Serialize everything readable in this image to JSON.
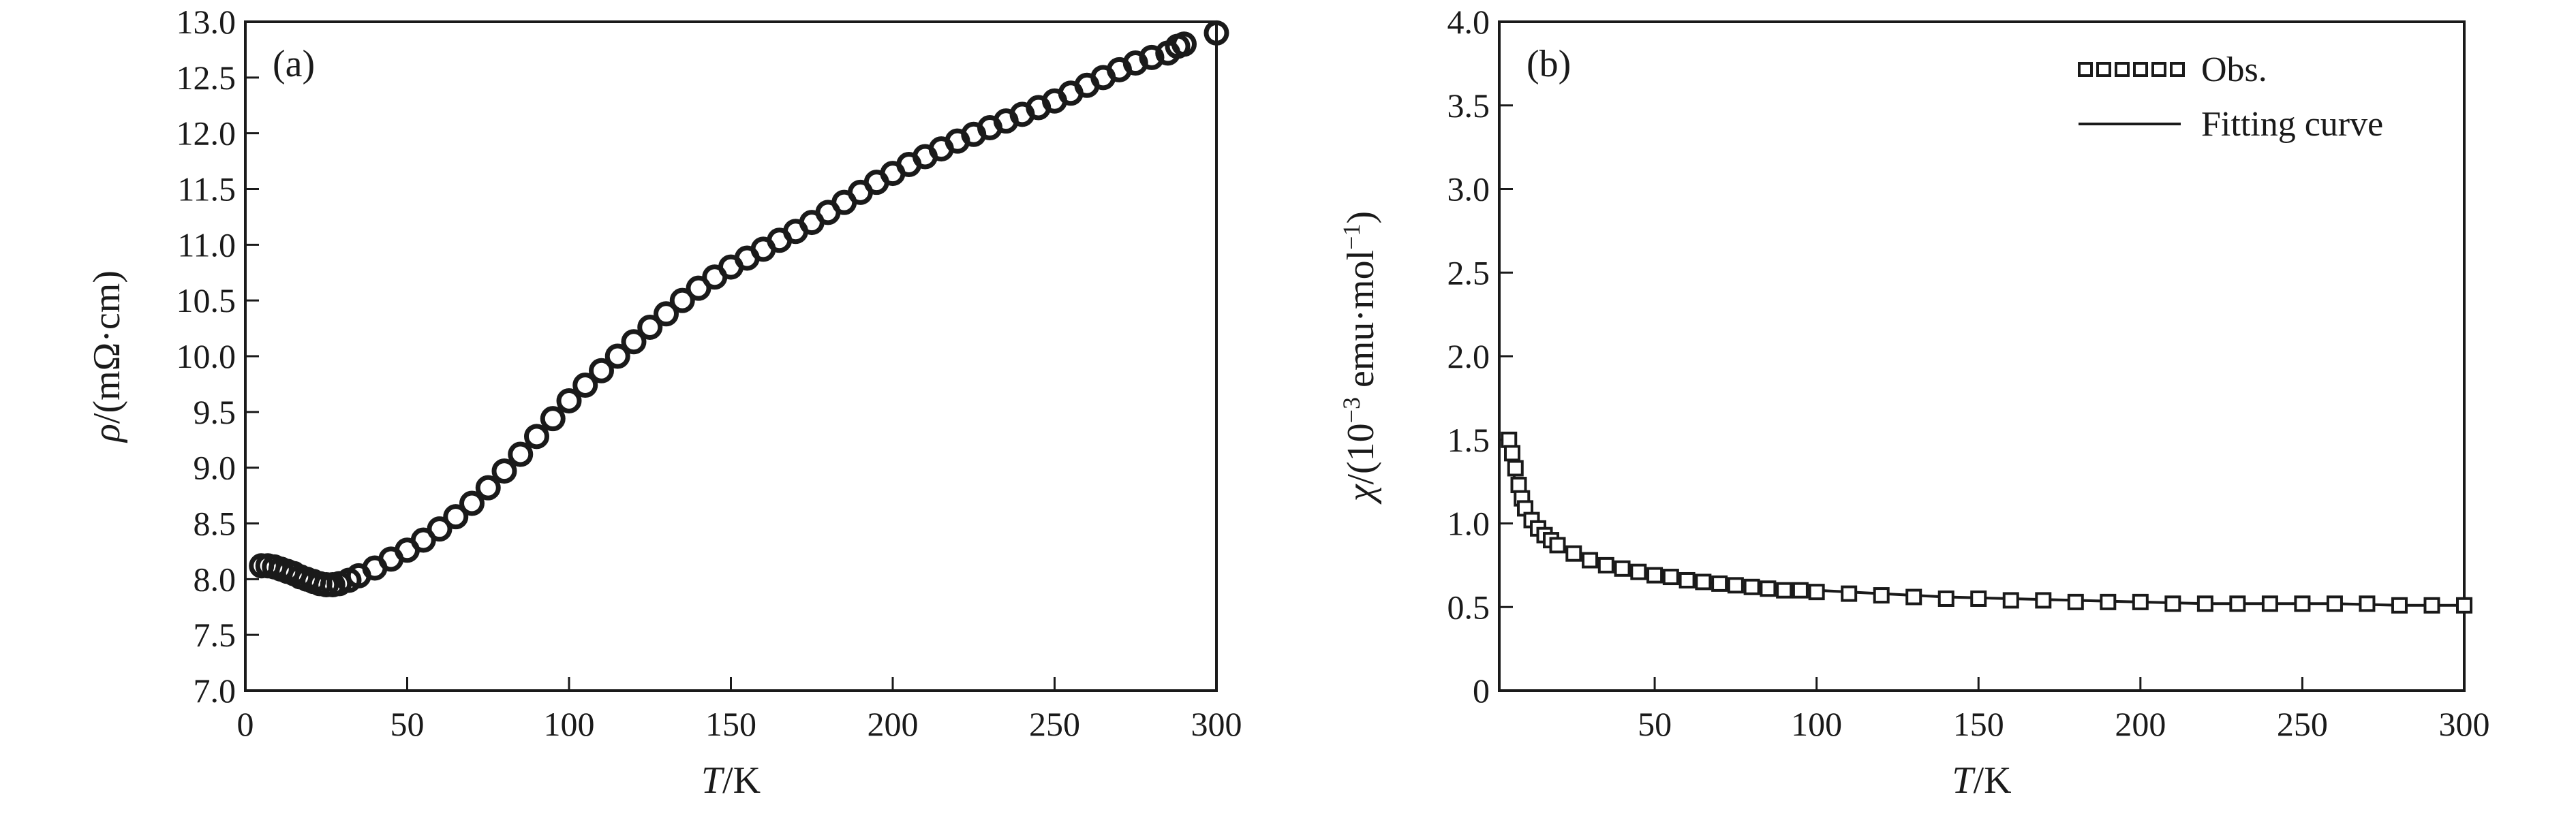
{
  "chart_data": [
    {
      "type": "scatter",
      "panel_label": "(a)",
      "title": "",
      "xlabel_italic": "T",
      "xlabel_rest": "/K",
      "ylabel_italic": "ρ",
      "ylabel_rest": "/(mΩ·cm)",
      "xlim": [
        0,
        300
      ],
      "ylim": [
        7.0,
        13.0
      ],
      "xticks": [
        0,
        50,
        100,
        150,
        200,
        250,
        300
      ],
      "xtick_labels": [
        "0",
        "50",
        "100",
        "150",
        "200",
        "250",
        "300"
      ],
      "yticks": [
        7.0,
        7.5,
        8.0,
        8.5,
        9.0,
        9.5,
        10.0,
        10.5,
        11.0,
        11.5,
        12.0,
        12.5,
        13.0
      ],
      "ytick_labels": [
        "7.0",
        "7.5",
        "8.0",
        "8.5",
        "9.0",
        "9.5",
        "10.0",
        "10.5",
        "11.0",
        "11.5",
        "12.0",
        "12.5",
        "13.0"
      ],
      "grid": false,
      "series": [
        {
          "marker": "open-circle",
          "x": [
            5,
            7,
            9,
            11,
            13,
            15,
            17,
            19,
            21,
            23,
            25,
            27,
            29,
            32,
            35,
            40,
            45,
            50,
            55,
            60,
            65,
            70,
            75,
            80,
            85,
            90,
            95,
            100,
            105,
            110,
            115,
            120,
            125,
            130,
            135,
            140,
            145,
            150,
            155,
            160,
            165,
            170,
            175,
            180,
            185,
            190,
            195,
            200,
            205,
            210,
            215,
            220,
            225,
            230,
            235,
            240,
            245,
            250,
            255,
            260,
            265,
            270,
            275,
            280,
            285,
            288,
            290,
            300
          ],
          "y": [
            8.12,
            8.12,
            8.11,
            8.09,
            8.07,
            8.05,
            8.02,
            8.0,
            7.98,
            7.96,
            7.95,
            7.95,
            7.96,
            7.99,
            8.03,
            8.1,
            8.18,
            8.26,
            8.35,
            8.45,
            8.56,
            8.68,
            8.82,
            8.97,
            9.12,
            9.28,
            9.44,
            9.6,
            9.74,
            9.87,
            10.0,
            10.13,
            10.26,
            10.38,
            10.5,
            10.61,
            10.71,
            10.8,
            10.88,
            10.96,
            11.04,
            11.12,
            11.2,
            11.29,
            11.38,
            11.47,
            11.56,
            11.64,
            11.72,
            11.79,
            11.86,
            11.93,
            11.99,
            12.05,
            12.11,
            12.17,
            12.23,
            12.29,
            12.36,
            12.43,
            12.5,
            12.57,
            12.63,
            12.68,
            12.72,
            12.78,
            12.8,
            12.9
          ]
        }
      ]
    },
    {
      "type": "line",
      "panel_label": "(b)",
      "title": "",
      "xlabel_italic": "T",
      "xlabel_rest": "/K",
      "ylabel_italic": "χ",
      "ylabel_rest_pre": "/(10",
      "ylabel_sup1": "−3",
      "ylabel_rest_mid": " emu·mol",
      "ylabel_sup2": "−1",
      "ylabel_rest_post": ")",
      "xlim": [
        2,
        300
      ],
      "ylim": [
        0,
        4.0
      ],
      "xticks": [
        50,
        100,
        150,
        200,
        250,
        300
      ],
      "xtick_labels": [
        "50",
        "100",
        "150",
        "200",
        "250",
        "300"
      ],
      "yticks": [
        0,
        0.5,
        1.0,
        1.5,
        2.0,
        2.5,
        3.0,
        3.5,
        4.0
      ],
      "ytick_labels": [
        "0",
        "0.5",
        "1.0",
        "1.5",
        "2.0",
        "2.5",
        "3.0",
        "3.5",
        "4.0"
      ],
      "grid": false,
      "legend_position": "top-right",
      "series": [
        {
          "name": "Obs.",
          "marker": "open-square",
          "x": [
            5,
            6,
            7,
            8,
            9,
            10,
            12,
            14,
            16,
            18,
            20,
            25,
            30,
            35,
            40,
            45,
            50,
            55,
            60,
            65,
            70,
            75,
            80,
            85,
            90,
            95,
            100,
            110,
            120,
            130,
            140,
            150,
            160,
            170,
            180,
            190,
            200,
            210,
            220,
            230,
            240,
            250,
            260,
            270,
            280,
            290,
            300
          ],
          "y": [
            1.5,
            1.42,
            1.33,
            1.23,
            1.15,
            1.09,
            1.02,
            0.97,
            0.93,
            0.9,
            0.87,
            0.82,
            0.78,
            0.75,
            0.73,
            0.71,
            0.69,
            0.68,
            0.66,
            0.65,
            0.64,
            0.63,
            0.62,
            0.61,
            0.6,
            0.6,
            0.59,
            0.58,
            0.57,
            0.56,
            0.55,
            0.55,
            0.54,
            0.54,
            0.53,
            0.53,
            0.53,
            0.52,
            0.52,
            0.52,
            0.52,
            0.52,
            0.52,
            0.52,
            0.51,
            0.51,
            0.51
          ]
        },
        {
          "name": "Fitting curve",
          "marker": "none",
          "x": [
            4,
            5,
            6,
            7,
            8,
            9,
            10,
            12,
            14,
            16,
            18,
            20,
            25,
            30,
            35,
            40,
            45,
            50,
            60,
            70,
            80,
            90,
            100,
            120,
            140,
            160,
            180,
            200,
            220,
            240,
            260,
            280,
            300
          ],
          "y": [
            1.5,
            1.44,
            1.34,
            1.24,
            1.16,
            1.1,
            1.05,
            0.99,
            0.95,
            0.92,
            0.89,
            0.87,
            0.82,
            0.78,
            0.75,
            0.73,
            0.71,
            0.69,
            0.66,
            0.64,
            0.62,
            0.61,
            0.6,
            0.58,
            0.56,
            0.55,
            0.54,
            0.53,
            0.52,
            0.52,
            0.52,
            0.51,
            0.51
          ]
        }
      ]
    }
  ]
}
